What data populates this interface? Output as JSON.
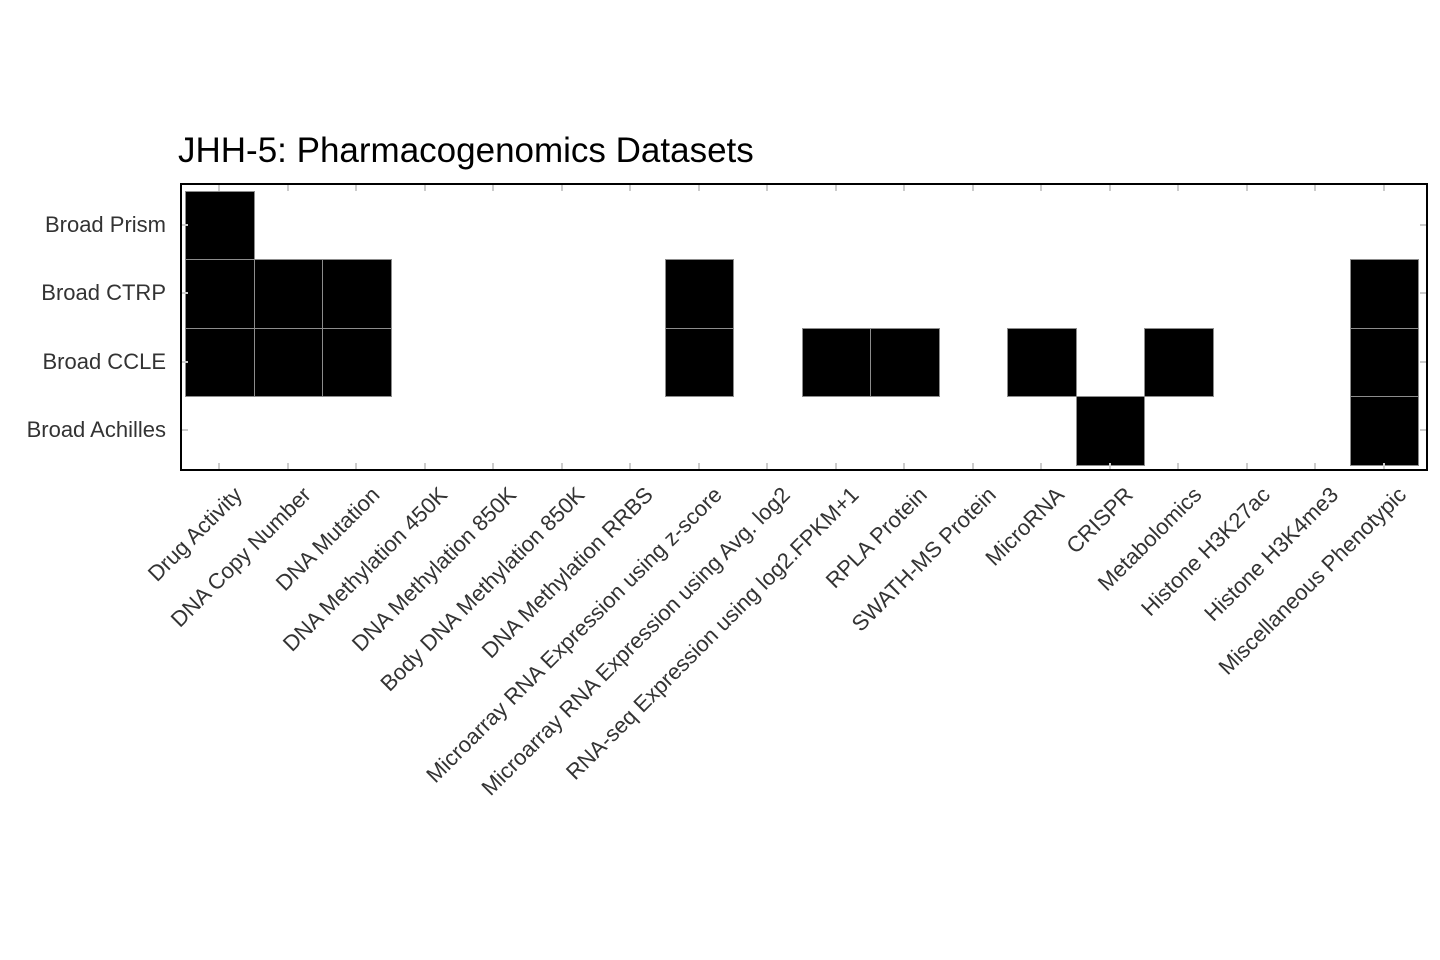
{
  "title": "JHH-5: Pharmacogenomics Datasets",
  "colors": {
    "background": "#ffffff",
    "cell_fill": "#000000",
    "cell_border": "#8c8c8c",
    "plot_border": "#000000",
    "tick": "#cccccc",
    "tick_label_text": "#333333",
    "title_text": "#000000"
  },
  "chart_data": {
    "type": "heatmap",
    "title": "JHH-5: Pharmacogenomics Datasets",
    "legend": "none",
    "grid": "off",
    "value_encoding": {
      "1": "filled (black)",
      "0": "empty (white)"
    },
    "rows": [
      "Broad Prism",
      "Broad CTRP",
      "Broad CCLE",
      "Broad Achilles"
    ],
    "columns": [
      "Drug Activity",
      "DNA Copy Number",
      "DNA Mutation",
      "DNA Methylation 450K",
      "DNA Methylation 850K",
      "Body DNA Methylation 850K",
      "DNA Methylation RRBS",
      "Microarray RNA Expression using z-score",
      "Microarray RNA Expression using Avg. log2",
      "RNA-seq Expression using log2.FPKM+1",
      "RPLA Protein",
      "SWATH-MS Protein",
      "MicroRNA",
      "CRISPR",
      "Metabolomics",
      "Histone H3K27ac",
      "Histone H3K4me3",
      "Miscellaneous Phenotypic"
    ],
    "values": [
      [
        1,
        0,
        0,
        0,
        0,
        0,
        0,
        0,
        0,
        0,
        0,
        0,
        0,
        0,
        0,
        0,
        0,
        0
      ],
      [
        1,
        1,
        1,
        0,
        0,
        0,
        0,
        1,
        0,
        0,
        0,
        0,
        0,
        0,
        0,
        0,
        0,
        1
      ],
      [
        1,
        1,
        1,
        0,
        0,
        0,
        0,
        1,
        0,
        1,
        1,
        0,
        1,
        0,
        1,
        0,
        0,
        1
      ],
      [
        0,
        0,
        0,
        0,
        0,
        0,
        0,
        0,
        0,
        0,
        0,
        0,
        0,
        1,
        0,
        0,
        0,
        1
      ]
    ]
  }
}
